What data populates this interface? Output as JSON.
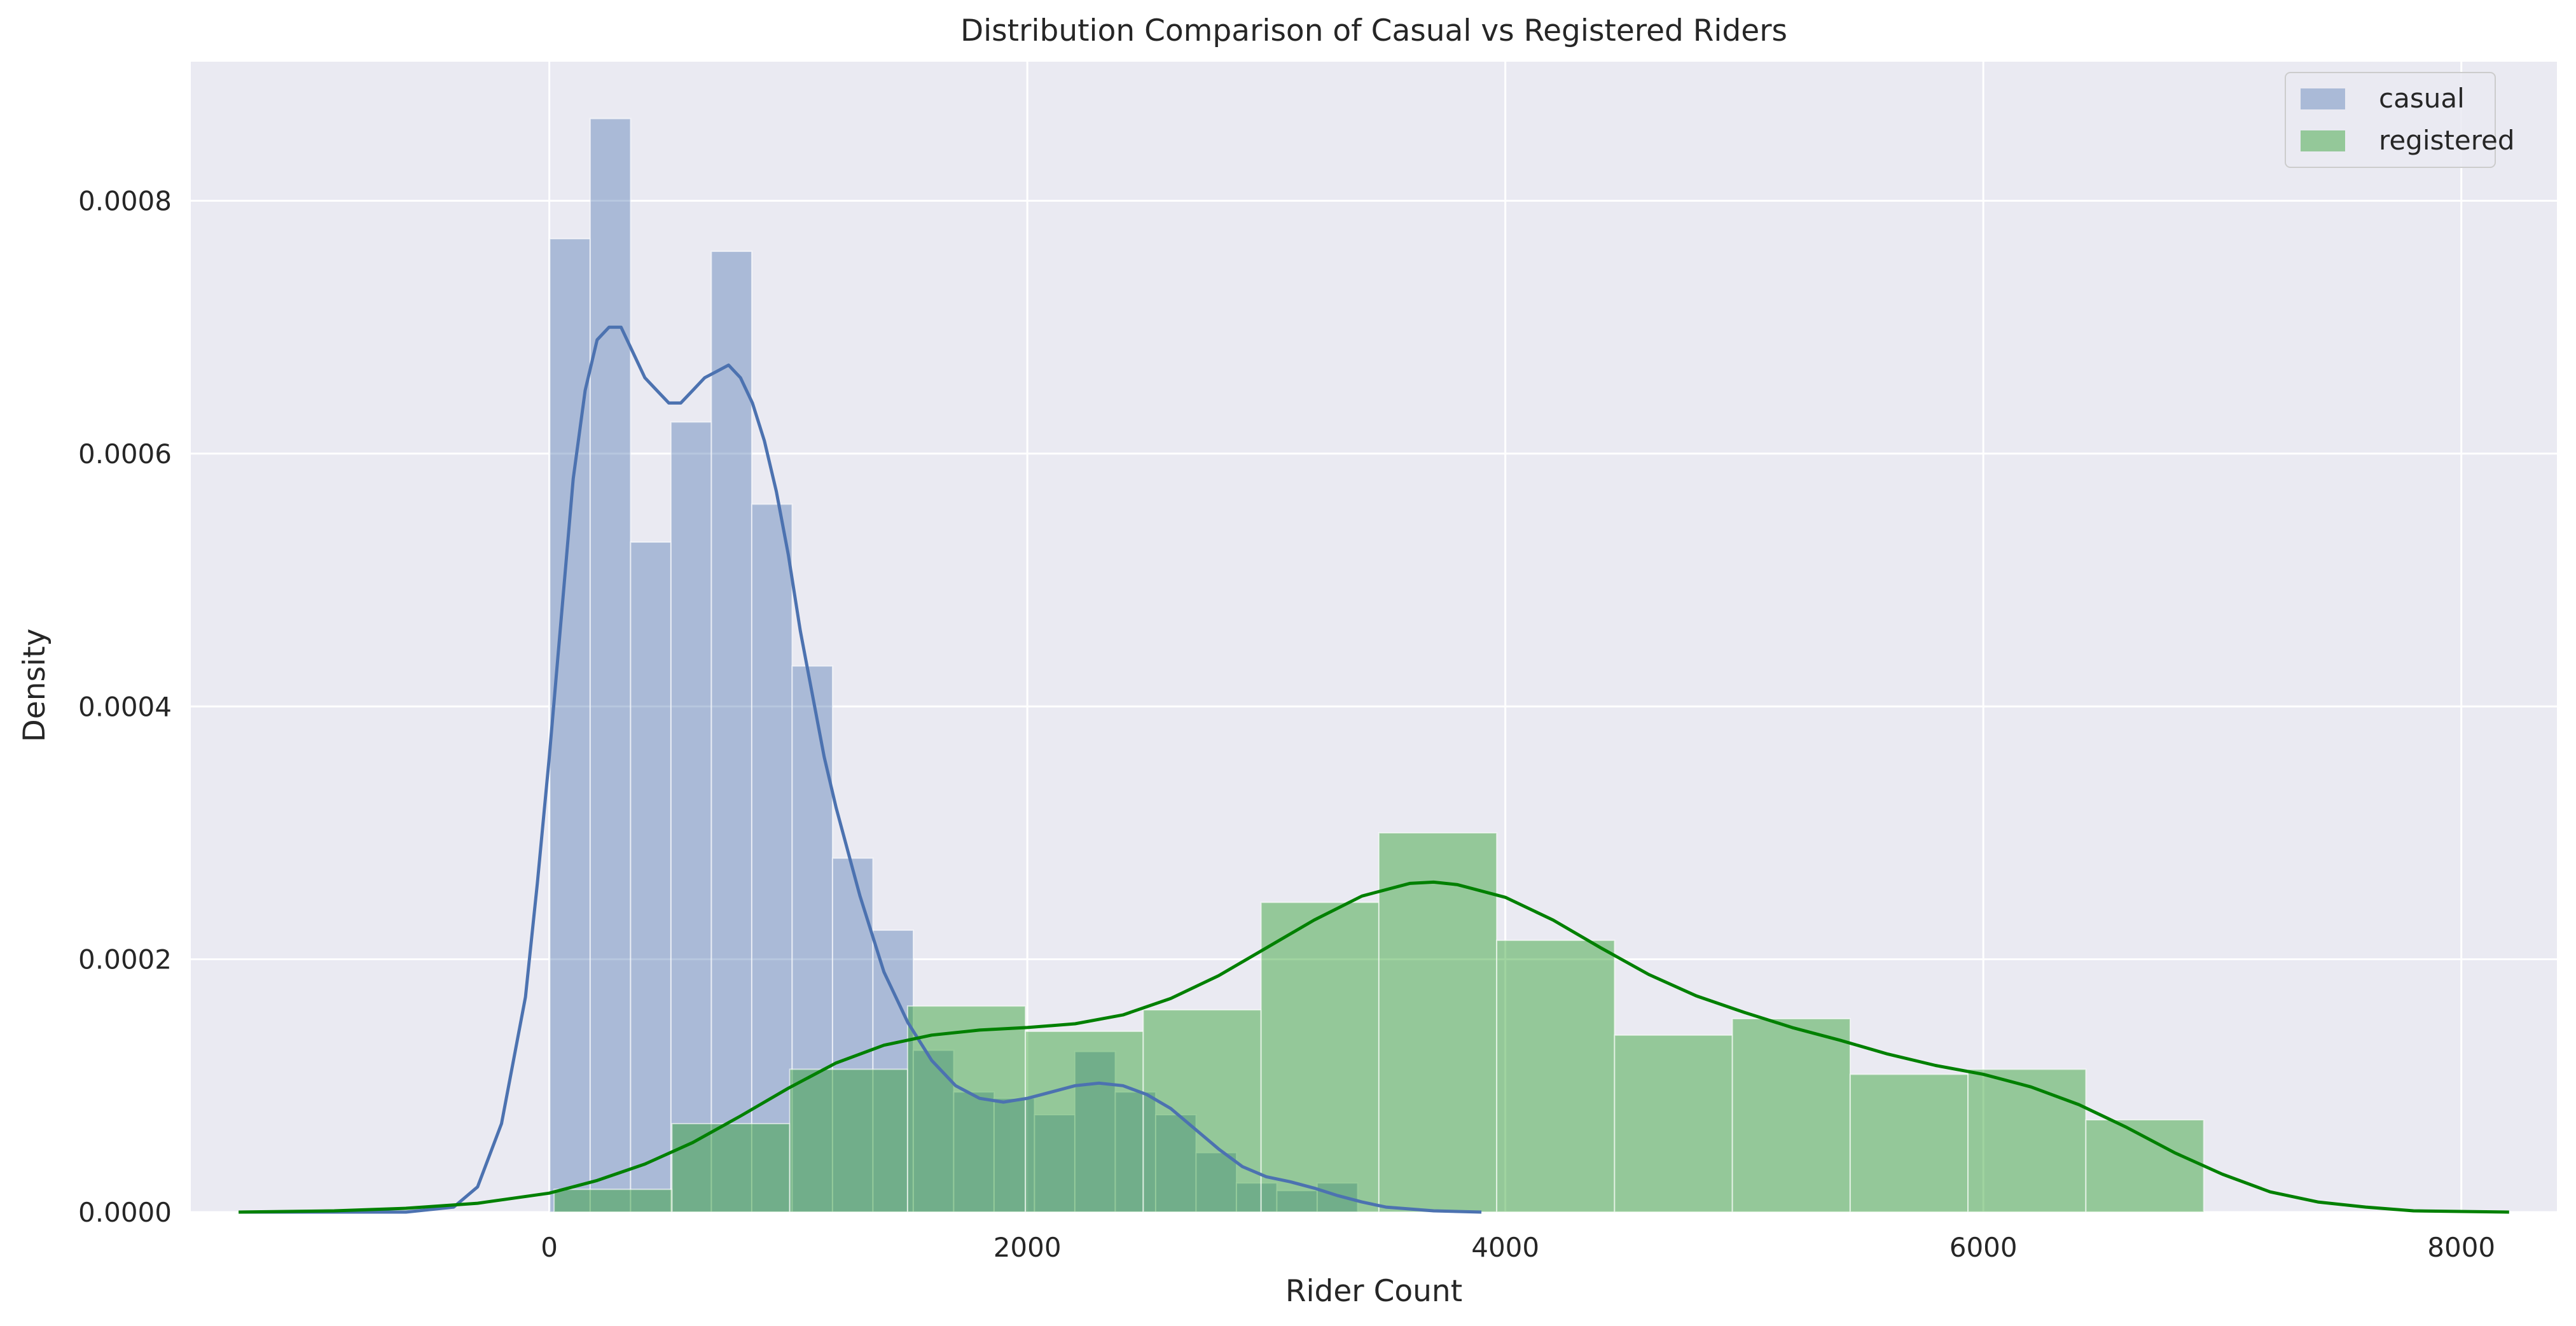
{
  "chart_data": {
    "type": "histogram",
    "title": "Distribution Comparison of Casual vs Registered Riders",
    "xlabel": "Rider Count",
    "ylabel": "Density",
    "xlim": [
      -1500,
      8400
    ],
    "ylim": [
      0,
      0.00091
    ],
    "xticks": [
      0,
      2000,
      4000,
      6000,
      8000
    ],
    "xtick_labels": [
      "0",
      "2000",
      "4000",
      "6000",
      "8000"
    ],
    "yticks": [
      0,
      0.0002,
      0.0004,
      0.0006,
      0.0008
    ],
    "ytick_labels": [
      "0.0000",
      "0.0002",
      "0.0004",
      "0.0006",
      "0.0008"
    ],
    "grid": true,
    "legend_position": "top-right",
    "series": [
      {
        "name": "casual",
        "bar_color": "#4c72b0",
        "bar_opacity": 0.4,
        "line_color": "#4c72b0",
        "bins": [
          [
            2,
            171,
            0.00077
          ],
          [
            171,
            340,
            0.000865
          ],
          [
            340,
            509,
            0.00053
          ],
          [
            509,
            678,
            0.000625
          ],
          [
            678,
            847,
            0.00076
          ],
          [
            847,
            1016,
            0.00056
          ],
          [
            1016,
            1185,
            0.000432
          ],
          [
            1185,
            1354,
            0.00028
          ],
          [
            1354,
            1523,
            0.000223
          ],
          [
            1523,
            1692,
            0.000128
          ],
          [
            1692,
            1861,
            9.5e-05
          ],
          [
            1861,
            2030,
            9e-05
          ],
          [
            2030,
            2199,
            7.7e-05
          ],
          [
            2199,
            2368,
            0.000127
          ],
          [
            2368,
            2537,
            9.5e-05
          ],
          [
            2537,
            2706,
            7.7e-05
          ],
          [
            2706,
            2875,
            4.7e-05
          ],
          [
            2875,
            3044,
            2.3e-05
          ],
          [
            3044,
            3213,
            1.7e-05
          ],
          [
            3213,
            3382,
            2.3e-05
          ]
        ],
        "kde": [
          [
            -1300,
            0
          ],
          [
            -600,
            0
          ],
          [
            -400,
            4e-06
          ],
          [
            -300,
            2e-05
          ],
          [
            -200,
            7e-05
          ],
          [
            -100,
            0.00017
          ],
          [
            -50,
            0.00026
          ],
          [
            0,
            0.00036
          ],
          [
            50,
            0.00047
          ],
          [
            100,
            0.00058
          ],
          [
            150,
            0.00065
          ],
          [
            200,
            0.00069
          ],
          [
            250,
            0.0007
          ],
          [
            300,
            0.0007
          ],
          [
            350,
            0.00068
          ],
          [
            400,
            0.00066
          ],
          [
            450,
            0.00065
          ],
          [
            500,
            0.00064
          ],
          [
            550,
            0.00064
          ],
          [
            600,
            0.00065
          ],
          [
            650,
            0.00066
          ],
          [
            700,
            0.000665
          ],
          [
            750,
            0.00067
          ],
          [
            800,
            0.00066
          ],
          [
            850,
            0.00064
          ],
          [
            900,
            0.00061
          ],
          [
            950,
            0.00057
          ],
          [
            1000,
            0.00052
          ],
          [
            1050,
            0.00046
          ],
          [
            1100,
            0.00041
          ],
          [
            1150,
            0.00036
          ],
          [
            1200,
            0.00032
          ],
          [
            1300,
            0.00025
          ],
          [
            1400,
            0.00019
          ],
          [
            1500,
            0.00015
          ],
          [
            1600,
            0.00012
          ],
          [
            1700,
            0.0001
          ],
          [
            1800,
            9e-05
          ],
          [
            1900,
            8.7e-05
          ],
          [
            2000,
            9e-05
          ],
          [
            2100,
            9.5e-05
          ],
          [
            2200,
            0.0001
          ],
          [
            2300,
            0.000102
          ],
          [
            2400,
            0.0001
          ],
          [
            2500,
            9.3e-05
          ],
          [
            2600,
            8.2e-05
          ],
          [
            2700,
            6.6e-05
          ],
          [
            2800,
            5e-05
          ],
          [
            2900,
            3.6e-05
          ],
          [
            3000,
            2.8e-05
          ],
          [
            3100,
            2.4e-05
          ],
          [
            3200,
            1.9e-05
          ],
          [
            3300,
            1.3e-05
          ],
          [
            3400,
            8e-06
          ],
          [
            3500,
            4e-06
          ],
          [
            3700,
            1e-06
          ],
          [
            3900,
            0
          ]
        ]
      },
      {
        "name": "registered",
        "bar_color": "#2ca02c",
        "bar_opacity": 0.45,
        "line_color": "#008000",
        "bins": [
          [
            20,
            513,
            1.8e-05
          ],
          [
            513,
            1006,
            7e-05
          ],
          [
            1006,
            1499,
            0.000113
          ],
          [
            1499,
            1992,
            0.000163
          ],
          [
            1992,
            2485,
            0.000143
          ],
          [
            2485,
            2978,
            0.00016
          ],
          [
            2978,
            3471,
            0.000245
          ],
          [
            3471,
            3964,
            0.0003
          ],
          [
            3964,
            4457,
            0.000215
          ],
          [
            4457,
            4950,
            0.00014
          ],
          [
            4950,
            5443,
            0.000153
          ],
          [
            5443,
            5936,
            0.000109
          ],
          [
            5936,
            6429,
            0.000113
          ],
          [
            6429,
            6922,
            7.3e-05
          ]
        ],
        "kde": [
          [
            -1300,
            0
          ],
          [
            -900,
            1e-06
          ],
          [
            -600,
            3e-06
          ],
          [
            -300,
            7e-06
          ],
          [
            0,
            1.5e-05
          ],
          [
            200,
            2.5e-05
          ],
          [
            400,
            3.8e-05
          ],
          [
            600,
            5.5e-05
          ],
          [
            800,
            7.6e-05
          ],
          [
            1000,
            9.8e-05
          ],
          [
            1200,
            0.000118
          ],
          [
            1400,
            0.000132
          ],
          [
            1600,
            0.00014
          ],
          [
            1800,
            0.000144
          ],
          [
            2000,
            0.000146
          ],
          [
            2200,
            0.000149
          ],
          [
            2400,
            0.000156
          ],
          [
            2600,
            0.000169
          ],
          [
            2800,
            0.000187
          ],
          [
            3000,
            0.000209
          ],
          [
            3200,
            0.000231
          ],
          [
            3400,
            0.00025
          ],
          [
            3600,
            0.00026
          ],
          [
            3700,
            0.000261
          ],
          [
            3800,
            0.000259
          ],
          [
            4000,
            0.000249
          ],
          [
            4200,
            0.000231
          ],
          [
            4400,
            0.000209
          ],
          [
            4600,
            0.000188
          ],
          [
            4800,
            0.000171
          ],
          [
            5000,
            0.000158
          ],
          [
            5200,
            0.000146
          ],
          [
            5400,
            0.000136
          ],
          [
            5600,
            0.000125
          ],
          [
            5800,
            0.000116
          ],
          [
            6000,
            0.000109
          ],
          [
            6200,
            9.9e-05
          ],
          [
            6400,
            8.5e-05
          ],
          [
            6600,
            6.7e-05
          ],
          [
            6800,
            4.7e-05
          ],
          [
            7000,
            3e-05
          ],
          [
            7200,
            1.6e-05
          ],
          [
            7400,
            8e-06
          ],
          [
            7600,
            4e-06
          ],
          [
            7800,
            1e-06
          ],
          [
            8200,
            0
          ]
        ]
      }
    ]
  }
}
